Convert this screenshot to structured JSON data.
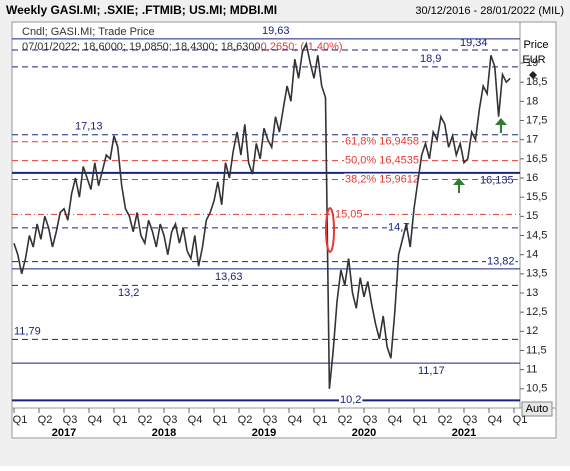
{
  "chart_data": {
    "type": "line",
    "title": "Weekly GASI.MI; .SXIE; .FTMIB; US.MI; MDBI.MI",
    "date_range": "30/12/2016 - 28/01/2022 (MIL)",
    "legend_name": "Cndl; GASI.MI; Trade Price",
    "legend_ohlc": "07/01/2022; 18,6000; 19,0850; 18,4300; 18,6300;",
    "legend_change": "-0,2650; (-1,40%)",
    "y_axis_label": "Price",
    "y_axis_unit": "EUR",
    "button": "Auto",
    "color": "#333333",
    "values": [
      14.3,
      14.0,
      13.5,
      13.9,
      14.5,
      14.2,
      14.8,
      14.4,
      15.0,
      14.7,
      14.2,
      14.6,
      15.1,
      15.2,
      14.9,
      15.6,
      16.0,
      15.5,
      16.3,
      16.0,
      15.7,
      16.4,
      15.8,
      16.2,
      16.6,
      16.5,
      17.1,
      16.8,
      15.8,
      15.2,
      15.0,
      14.6,
      15.1,
      14.5,
      14.3,
      14.9,
      14.6,
      14.2,
      14.8,
      14.5,
      14.0,
      14.6,
      14.8,
      14.3,
      14.7,
      14.1,
      13.9,
      14.5,
      13.7,
      14.2,
      14.9,
      15.1,
      15.4,
      15.9,
      15.3,
      16.4,
      16.0,
      16.7,
      17.2,
      16.6,
      17.4,
      16.4,
      16.1,
      16.9,
      16.5,
      17.3,
      17.0,
      16.8,
      17.6,
      17.2,
      17.8,
      18.4,
      18.0,
      19.1,
      18.6,
      19.3,
      19.5,
      19.0,
      18.6,
      19.2,
      18.4,
      18.1,
      10.5,
      11.5,
      12.8,
      13.6,
      13.2,
      13.9,
      13.0,
      12.6,
      13.4,
      12.9,
      13.3,
      12.7,
      12.2,
      11.8,
      12.4,
      11.6,
      11.3,
      12.5,
      14.0,
      14.4,
      14.8,
      14.2,
      15.2,
      15.9,
      16.6,
      16.9,
      16.5,
      17.2,
      17.0,
      17.6,
      17.4,
      16.8,
      17.1,
      16.6,
      16.9,
      16.4,
      16.5,
      17.2,
      17.0,
      17.8,
      18.4,
      18.2,
      19.2,
      18.9,
      17.6,
      18.7,
      18.5,
      18.6
    ],
    "xlim": [
      0,
      130
    ],
    "xticks": [
      {
        "value": 0,
        "label": "Q1"
      },
      {
        "value": 6.5,
        "label": "Q2"
      },
      {
        "value": 13,
        "label": "Q3"
      },
      {
        "value": 19.5,
        "label": "Q4"
      },
      {
        "value": 26,
        "label": "Q1"
      },
      {
        "value": 32.5,
        "label": "Q2"
      },
      {
        "value": 39,
        "label": "Q3"
      },
      {
        "value": 45.5,
        "label": "Q4"
      },
      {
        "value": 52,
        "label": "Q1"
      },
      {
        "value": 58.5,
        "label": "Q2"
      },
      {
        "value": 65,
        "label": "Q3"
      },
      {
        "value": 71.5,
        "label": "Q4"
      },
      {
        "value": 78,
        "label": "Q1"
      },
      {
        "value": 84.5,
        "label": "Q2"
      },
      {
        "value": 91,
        "label": "Q3"
      },
      {
        "value": 97.5,
        "label": "Q4"
      },
      {
        "value": 104,
        "label": "Q1"
      },
      {
        "value": 110.5,
        "label": "Q2"
      },
      {
        "value": 117,
        "label": "Q3"
      },
      {
        "value": 123.5,
        "label": "Q4"
      },
      {
        "value": 130,
        "label": "Q1"
      }
    ],
    "year_labels": [
      {
        "value": 13,
        "label": "2017"
      },
      {
        "value": 39,
        "label": "2018"
      },
      {
        "value": 65,
        "label": "2019"
      },
      {
        "value": 91,
        "label": "2020"
      },
      {
        "value": 117,
        "label": "2021"
      }
    ],
    "ylim": [
      10.0,
      20.07
    ],
    "yticks": [
      {
        "value": 10.5,
        "label": "10,5"
      },
      11,
      {
        "value": 11.5,
        "label": "11,5"
      },
      12,
      {
        "value": 12.5,
        "label": "12,5"
      },
      13,
      {
        "value": 13.5,
        "label": "13,5"
      },
      14,
      {
        "value": 14.5,
        "label": "14,5"
      },
      15,
      {
        "value": 15.5,
        "label": "15,5"
      },
      16,
      {
        "value": 16.5,
        "label": "16,5"
      },
      17,
      {
        "value": 17.5,
        "label": "17,5"
      },
      18,
      {
        "value": 18.5,
        "label": "18,5"
      },
      19
    ],
    "levels": [
      {
        "value": 19.63,
        "label": "19,63",
        "color": "#1a237e",
        "style": "solid"
      },
      {
        "value": 19.34,
        "label": "19,34",
        "color": "#1a237e",
        "style": "dashed"
      },
      {
        "value": 18.9,
        "label": "18,9",
        "color": "#1a237e",
        "style": "dashed"
      },
      {
        "value": 17.13,
        "label": "17,13",
        "color": "#1a237e",
        "style": "dashed"
      },
      {
        "value": 16.9458,
        "label": "61,8% 16,9458",
        "color": "#e53935",
        "style": "dashed"
      },
      {
        "value": 16.4535,
        "label": "50,0% 16,4535",
        "color": "#e53935",
        "style": "dashed"
      },
      {
        "value": 16.135,
        "label": "16,135",
        "color": "#1a237e",
        "style": "thick"
      },
      {
        "value": 15.9612,
        "label": "38,2% 15,9612",
        "color": "#e53935",
        "style": "dashed"
      },
      {
        "value": 15.05,
        "label": "15,05",
        "color": "#e53935",
        "style": "dashdot"
      },
      {
        "value": 14.7,
        "label": "14,7",
        "color": "#1a237e",
        "style": "dashed"
      },
      {
        "value": 13.82,
        "label": "13,82",
        "color": "#1a237e",
        "style": "dashed"
      },
      {
        "value": 13.63,
        "label": "13,63",
        "color": "#1a237e",
        "style": "solid"
      },
      {
        "value": 13.2,
        "label": "13,2",
        "color": "#1a237e",
        "style": "dashed"
      },
      {
        "value": 11.79,
        "label": "11,79",
        "color": "#1a237e",
        "style": "dashed"
      },
      {
        "value": 11.17,
        "label": "11,17",
        "color": "#1a237e",
        "style": "solid"
      },
      {
        "value": 10.2,
        "label": "10,2",
        "color": "#1a237e",
        "style": "thick"
      }
    ]
  }
}
